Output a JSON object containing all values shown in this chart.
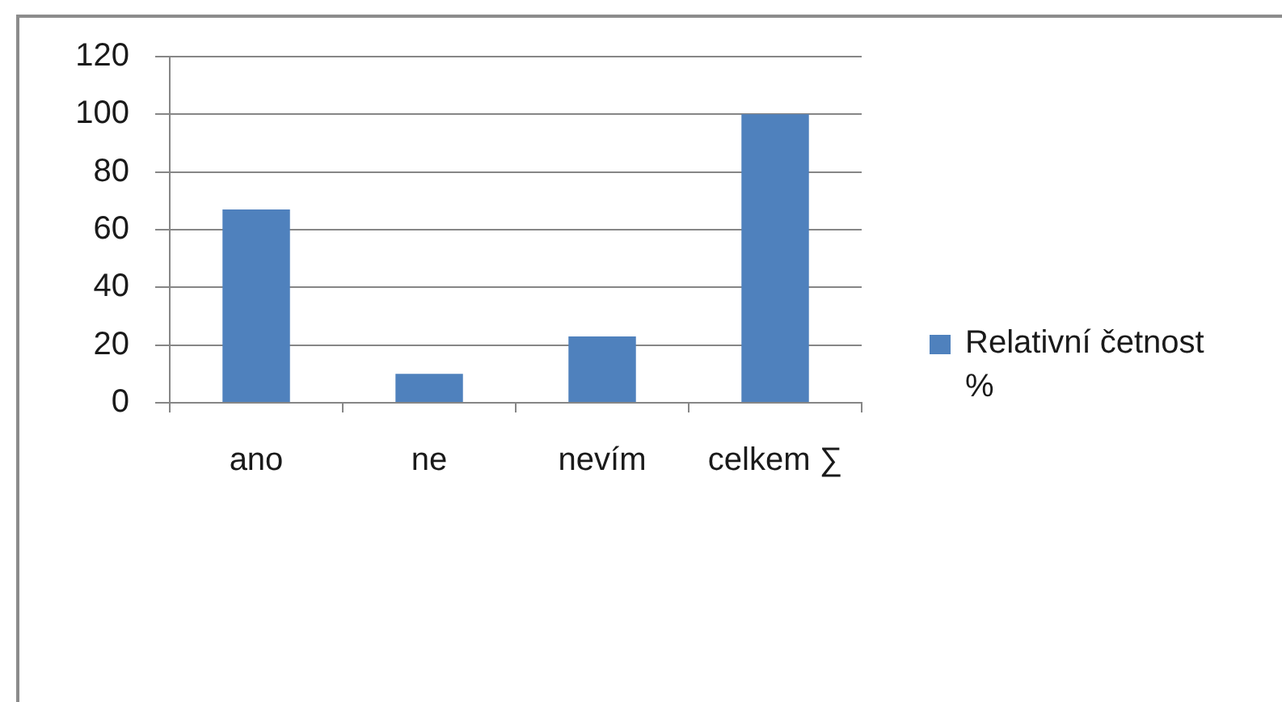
{
  "chart_data": {
    "type": "bar",
    "categories": [
      "ano",
      "ne",
      "nevím",
      "celkem ∑"
    ],
    "series": [
      {
        "name": "Relativní četnost %",
        "color": "#4f81bd",
        "values": [
          67,
          10,
          23,
          100
        ]
      }
    ],
    "ylim": [
      0,
      120
    ],
    "yticks": [
      0,
      20,
      40,
      60,
      80,
      100,
      120
    ],
    "grid": "y",
    "legend": "right"
  }
}
